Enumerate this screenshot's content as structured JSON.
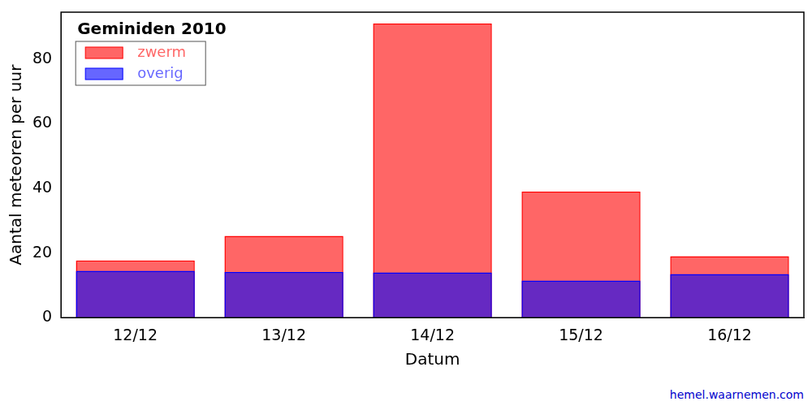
{
  "chart_data": {
    "type": "bar",
    "title": "Geminiden 2010",
    "x_label": "Datum",
    "y_label": "Aantal meteoren per uur",
    "source": "hemel.waarnemen.com",
    "categories": [
      "12/12",
      "13/12",
      "14/12",
      "15/12",
      "16/12"
    ],
    "series": [
      {
        "name": "zwerm",
        "color": "#ff0000",
        "values": [
          17.7,
          25.3,
          91,
          39,
          19
        ]
      },
      {
        "name": "overig",
        "color": "#0000ff",
        "values": [
          14.5,
          14.1,
          14,
          11.5,
          13.5
        ]
      }
    ],
    "ylim": [
      0,
      94.5
    ],
    "yticks": [
      0,
      20,
      40,
      60,
      80
    ],
    "grid": false,
    "legend": "upper left"
  }
}
